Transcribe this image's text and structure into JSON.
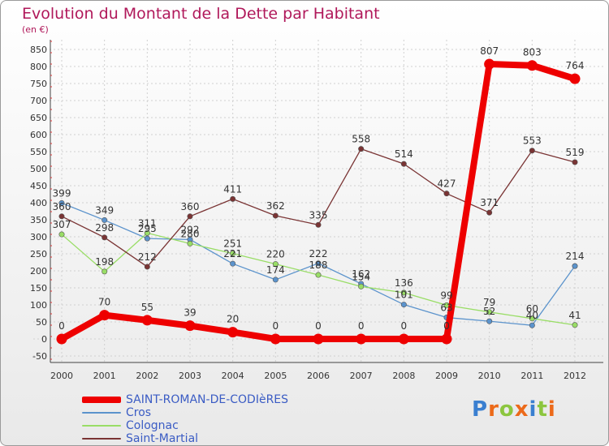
{
  "header": {
    "title": "Evolution du Montant de la Dette par Habitant",
    "subtitle": "(en €)"
  },
  "colors": {
    "title": "#b0185a",
    "axis_text": "#333333",
    "grid": "#d0d0d0",
    "legend_text": "#3b5cc4"
  },
  "chart_data": {
    "type": "line",
    "title": "Evolution du Montant de la Dette par Habitant",
    "ylabel": "(en €)",
    "xlabel": "",
    "x": [
      "2000",
      "2001",
      "2002",
      "2003",
      "2004",
      "2005",
      "2006",
      "2007",
      "2008",
      "2009",
      "2010",
      "2011",
      "2012"
    ],
    "ylim": [
      -50,
      850
    ],
    "yticks": [
      -50,
      0,
      50,
      100,
      150,
      200,
      250,
      300,
      350,
      400,
      450,
      500,
      550,
      600,
      650,
      700,
      750,
      800,
      850
    ],
    "grid": true,
    "legend_position": "bottom-left",
    "series": [
      {
        "name": "SAINT-ROMAN-DE-CODIèRES",
        "values": [
          0,
          70,
          55,
          39,
          20,
          0,
          0,
          0,
          0,
          0,
          807,
          803,
          764
        ],
        "color": "#ee0000",
        "highlight": true
      },
      {
        "name": "Cros",
        "values": [
          399,
          349,
          295,
          292,
          221,
          174,
          222,
          162,
          101,
          63,
          52,
          40,
          214
        ],
        "color": "#5b93cc",
        "highlight": false
      },
      {
        "name": "Colognac",
        "values": [
          307,
          198,
          311,
          280,
          251,
          220,
          188,
          154,
          136,
          99,
          79,
          60,
          41
        ],
        "color": "#99dd66",
        "highlight": false
      },
      {
        "name": "Saint-Martial",
        "values": [
          360,
          298,
          212,
          360,
          411,
          362,
          335,
          558,
          514,
          427,
          371,
          553,
          519
        ],
        "color": "#7a3434",
        "highlight": false
      }
    ]
  },
  "logo": {
    "text": "Proxiti",
    "letter_colors": [
      "#3a7fd0",
      "#ec6a1a",
      "#8cc63f",
      "#ec6a1a",
      "#3a7fd0",
      "#8cc63f",
      "#ec6a1a"
    ]
  }
}
